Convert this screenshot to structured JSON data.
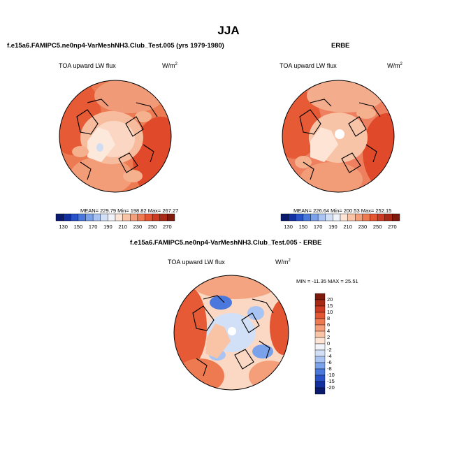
{
  "main_title": "JJA",
  "panels": [
    {
      "title": "f.e15a6.FAMIPC5.ne0np4-VarMeshNH3.Club_Test.005 (yrs 1979-1980)",
      "variable": "TOA upward LW flux",
      "units_base": "W/m",
      "units_exp": "2",
      "stats": "MEAN= 229.79  Min= 198.82  Max= 267.27"
    },
    {
      "title": "ERBE",
      "variable": "TOA upward LW flux",
      "units_base": "W/m",
      "units_exp": "2",
      "stats": "MEAN= 226.64  Min= 200.53  Max= 252.15"
    },
    {
      "title": "f.e15a6.FAMIPC5.ne0np4-VarMeshNH3.Club_Test.005 - ERBE",
      "variable": "TOA upward LW flux",
      "units_base": "W/m",
      "units_exp": "2",
      "stats": "MIN = -11.35 MAX =  25.51"
    }
  ],
  "colorbar_abs": {
    "tick_labels": [
      "130",
      "150",
      "170",
      "190",
      "210",
      "230",
      "250",
      "270"
    ],
    "colors": [
      "#0a1a6e",
      "#1330a0",
      "#2a52c8",
      "#4a78dc",
      "#7aa2ea",
      "#a9c4f2",
      "#d2e0f7",
      "#f1f3fa",
      "#fde4d5",
      "#f9c3a6",
      "#f49f7a",
      "#ee7a52",
      "#e45532",
      "#cd3b22",
      "#a82a16",
      "#7e1a0c"
    ]
  },
  "colorbar_diff": {
    "tick_labels": [
      "20",
      "15",
      "10",
      "8",
      "6",
      "4",
      "2",
      "0",
      "-2",
      "-4",
      "-6",
      "-8",
      "-10",
      "-15",
      "-20"
    ],
    "colors": [
      "#7e1a0c",
      "#a82a16",
      "#cd3b22",
      "#e45532",
      "#ee7a52",
      "#f49f7a",
      "#f9c3a6",
      "#fde4d5",
      "#f1f3fa",
      "#d2e0f7",
      "#a9c4f2",
      "#7aa2ea",
      "#4a78dc",
      "#2a52c8",
      "#1330a0",
      "#0a1a6e"
    ]
  },
  "chart_data": [
    {
      "type": "heatmap",
      "projection": "north-polar stereographic",
      "title": "f.e15a6.FAMIPC5.ne0np4-VarMeshNH3.Club_Test.005 (yrs 1979-1980)",
      "season": "JJA",
      "variable": "TOA upward LW flux",
      "units": "W/m2",
      "mean": 229.79,
      "min": 198.82,
      "max": 267.27,
      "levels": [
        130,
        140,
        150,
        160,
        170,
        180,
        190,
        200,
        210,
        220,
        230,
        240,
        250,
        260,
        270
      ]
    },
    {
      "type": "heatmap",
      "projection": "north-polar stereographic",
      "title": "ERBE",
      "season": "JJA",
      "variable": "TOA upward LW flux",
      "units": "W/m2",
      "mean": 226.64,
      "min": 200.53,
      "max": 252.15,
      "levels": [
        130,
        140,
        150,
        160,
        170,
        180,
        190,
        200,
        210,
        220,
        230,
        240,
        250,
        260,
        270
      ]
    },
    {
      "type": "heatmap",
      "projection": "north-polar stereographic",
      "title": "f.e15a6.FAMIPC5.ne0np4-VarMeshNH3.Club_Test.005 - ERBE",
      "season": "JJA",
      "variable": "TOA upward LW flux",
      "units": "W/m2",
      "min": -11.35,
      "max": 25.51,
      "levels": [
        -20,
        -15,
        -10,
        -8,
        -6,
        -4,
        -2,
        0,
        2,
        4,
        6,
        8,
        10,
        15,
        20
      ]
    }
  ]
}
